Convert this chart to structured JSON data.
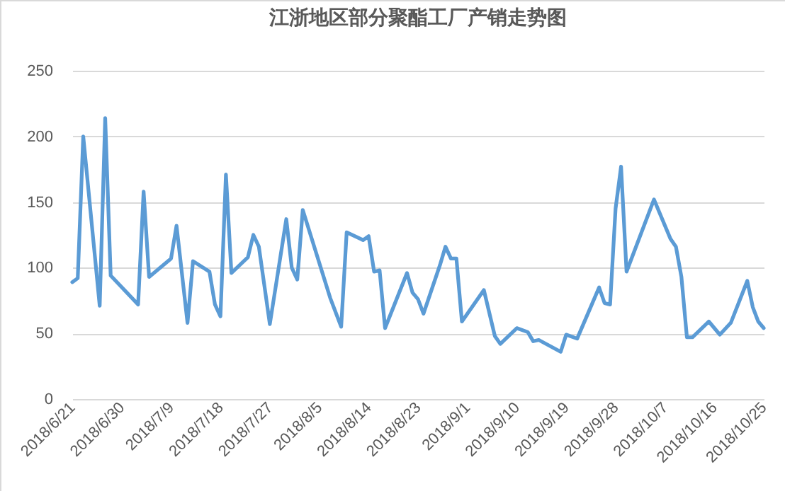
{
  "chart_data": {
    "type": "line",
    "title": "江浙地区部分聚酯工厂产销走势图",
    "x": [
      "2018-06-21",
      "2018-06-22",
      "2018-06-23",
      "2018-06-26",
      "2018-06-27",
      "2018-06-28",
      "2018-07-03",
      "2018-07-04",
      "2018-07-05",
      "2018-07-09",
      "2018-07-10",
      "2018-07-12",
      "2018-07-13",
      "2018-07-16",
      "2018-07-17",
      "2018-07-18",
      "2018-07-19",
      "2018-07-20",
      "2018-07-23",
      "2018-07-24",
      "2018-07-25",
      "2018-07-27",
      "2018-07-30",
      "2018-07-31",
      "2018-08-01",
      "2018-08-02",
      "2018-08-07",
      "2018-08-09",
      "2018-08-10",
      "2018-08-13",
      "2018-08-14",
      "2018-08-15",
      "2018-08-16",
      "2018-08-17",
      "2018-08-21",
      "2018-08-22",
      "2018-08-23",
      "2018-08-24",
      "2018-08-27",
      "2018-08-28",
      "2018-08-29",
      "2018-08-30",
      "2018-08-31",
      "2018-09-04",
      "2018-09-06",
      "2018-09-07",
      "2018-09-10",
      "2018-09-12",
      "2018-09-13",
      "2018-09-14",
      "2018-09-18",
      "2018-09-19",
      "2018-09-21",
      "2018-09-25",
      "2018-09-26",
      "2018-09-27",
      "2018-09-28",
      "2018-09-29",
      "2018-09-30",
      "2018-10-05",
      "2018-10-08",
      "2018-10-09",
      "2018-10-10",
      "2018-10-11",
      "2018-10-12",
      "2018-10-15",
      "2018-10-17",
      "2018-10-19",
      "2018-10-22",
      "2018-10-23",
      "2018-10-24",
      "2018-10-25"
    ],
    "series": [
      {
        "color": "#5b9bd5",
        "values": [
          89,
          92,
          200,
          71,
          214,
          94,
          72,
          158,
          93,
          107,
          132,
          58,
          105,
          97,
          72,
          63,
          171,
          96,
          108,
          125,
          116,
          57,
          137,
          100,
          91,
          144,
          77,
          55,
          127,
          121,
          124,
          97,
          98,
          54,
          96,
          81,
          76,
          65,
          102,
          116,
          107,
          107,
          59,
          83,
          48,
          42,
          54,
          51,
          44,
          45,
          36,
          49,
          46,
          85,
          73,
          72,
          145,
          177,
          97,
          152,
          122,
          116,
          93,
          47,
          47,
          59,
          49,
          58,
          90,
          70,
          59,
          54
        ]
      }
    ],
    "xlim": [
      "2018-06-21",
      "2018-10-25"
    ],
    "xticks": [
      {
        "value": "2018-06-21",
        "label": "2018/6/21"
      },
      {
        "value": "2018-06-30",
        "label": "2018/6/30"
      },
      {
        "value": "2018-07-09",
        "label": "2018/7/9"
      },
      {
        "value": "2018-07-18",
        "label": "2018/7/18"
      },
      {
        "value": "2018-07-27",
        "label": "2018/7/27"
      },
      {
        "value": "2018-08-05",
        "label": "2018/8/5"
      },
      {
        "value": "2018-08-14",
        "label": "2018/8/14"
      },
      {
        "value": "2018-08-23",
        "label": "2018/8/23"
      },
      {
        "value": "2018-09-01",
        "label": "2018/9/1"
      },
      {
        "value": "2018-09-10",
        "label": "2018/9/10"
      },
      {
        "value": "2018-09-19",
        "label": "2018/9/19"
      },
      {
        "value": "2018-09-28",
        "label": "2018/9/28"
      },
      {
        "value": "2018-10-07",
        "label": "2018/10/7"
      },
      {
        "value": "2018-10-16",
        "label": "2018/10/16"
      },
      {
        "value": "2018-10-25",
        "label": "2018/10/25"
      }
    ],
    "ylim": [
      0,
      250
    ],
    "yticks": [
      0,
      50,
      100,
      150,
      200,
      250
    ],
    "grid": "y",
    "line_style": "solid",
    "marker": "none"
  }
}
